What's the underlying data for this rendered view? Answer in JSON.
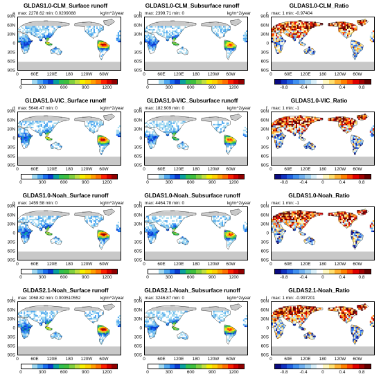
{
  "colors": {
    "runoff_scale": [
      "#ffffff",
      "#ffffff",
      "#a0d8f0",
      "#50a8f0",
      "#1a6ff0",
      "#0a3ad0",
      "#0aa0a0",
      "#30c050",
      "#3fbf3f",
      "#80d040",
      "#c0e040",
      "#f5f000",
      "#ffd000",
      "#ffa000",
      "#ff7000",
      "#ff2000",
      "#d00000",
      "#900000"
    ],
    "ratio_scale": [
      "#0a0a80",
      "#1030c0",
      "#2060e0",
      "#4090f0",
      "#70b0f0",
      "#a0d0f0",
      "#d8eef8",
      "#ffffff",
      "#fff8c0",
      "#ffe070",
      "#ffb030",
      "#ff8000",
      "#ff4000",
      "#e00000",
      "#a00000",
      "#600000"
    ],
    "land_no_data": "#c8c8c8",
    "coastline": "#000000"
  },
  "figure": {
    "rows": [
      {
        "panels": [
          {
            "letter": "a",
            "title": "GLDAS1.0-CLM_Surface runoff",
            "stat": "max: 2278.62  min: 0.0209088",
            "units": "kg/m^2/year",
            "variable": "surface-runoff",
            "scale": "runoff"
          },
          {
            "letter": "b",
            "title": "GLDAS1.0-CLM_Subsurface runoff",
            "stat": "max: 2399.71  min: 0",
            "units": "kg/m^2/year",
            "variable": "subsurface-runoff",
            "scale": "runoff"
          },
          {
            "letter": "c",
            "title": "GLDAS1.0-CLM_Ratio",
            "stat": "max: 1  min: -0.97404",
            "units": "",
            "variable": "ratio",
            "scale": "ratio"
          }
        ]
      },
      {
        "panels": [
          {
            "letter": "d",
            "title": "GLDAS1.0-VIC_Surface runoff",
            "stat": "max: 5646.47  min: 0",
            "units": "kg/m^2/year",
            "variable": "surface-runoff",
            "scale": "runoff"
          },
          {
            "letter": "e",
            "title": "GLDAS1.0-VIC_Subsurface runoff",
            "stat": "max: 182.909  min: 0",
            "units": "kg/m^2/year",
            "variable": "subsurface-runoff",
            "scale": "runoff"
          },
          {
            "letter": "f",
            "title": "GLDAS1.0-VIC_Ratio",
            "stat": "max: 1  min: -1",
            "units": "",
            "variable": "ratio",
            "scale": "ratio"
          }
        ]
      },
      {
        "panels": [
          {
            "letter": "g",
            "title": "GLDAS1.0-Noah_Surface runoff",
            "stat": "max: 1459.58  min: 0",
            "units": "kg/m^2/year",
            "variable": "surface-runoff",
            "scale": "runoff"
          },
          {
            "letter": "h",
            "title": "GLDAS1.0-Noah_Subsurface runoff",
            "stat": "max: 4464.78  min: 0",
            "units": "kg/m^2/year",
            "variable": "subsurface-runoff",
            "scale": "runoff"
          },
          {
            "letter": "i",
            "title": "GLDAS1.0-Noah_Ratio",
            "stat": "max: 1  min: -1",
            "units": "",
            "variable": "ratio",
            "scale": "ratio"
          }
        ]
      },
      {
        "panels": [
          {
            "letter": "j",
            "title": "GLDAS2.1-Noah_Surface runoff",
            "stat": "max: 1068.82  min: 0.000510552",
            "units": "kg/m^2/year",
            "variable": "surface-runoff",
            "scale": "runoff"
          },
          {
            "letter": "k",
            "title": "GLDAS2.1-Noah_Subsurface runoff",
            "stat": "max: 3246.87  min: 0",
            "units": "kg/m^2/year",
            "variable": "subsurface-runoff",
            "scale": "runoff"
          },
          {
            "letter": "l",
            "title": "GLDAS2.1-Noah_Ratio",
            "stat": "max: 1  min: -0.997201",
            "units": "",
            "variable": "ratio",
            "scale": "ratio"
          }
        ]
      }
    ]
  },
  "chart_data": {
    "type": "heatmap",
    "grid": {
      "rows": 4,
      "cols": 3
    },
    "map": {
      "lat_ticks": [
        "90N",
        "60N",
        "30N",
        "0",
        "30S",
        "60S",
        "90S"
      ],
      "lat_range": [
        -90,
        90
      ],
      "lon_ticks": [
        "0",
        "60E",
        "120E",
        "180",
        "120W",
        "60W"
      ],
      "lon_range": [
        0,
        360
      ]
    },
    "colorbars": {
      "runoff": {
        "ticks": [
          "0",
          "300",
          "600",
          "900",
          "1200"
        ],
        "range": [
          0,
          1350
        ]
      },
      "ratio": {
        "ticks": [
          "-0.8",
          "-0.4",
          "0",
          "0.4",
          "0.8"
        ],
        "range": [
          -1,
          1
        ]
      }
    }
  }
}
